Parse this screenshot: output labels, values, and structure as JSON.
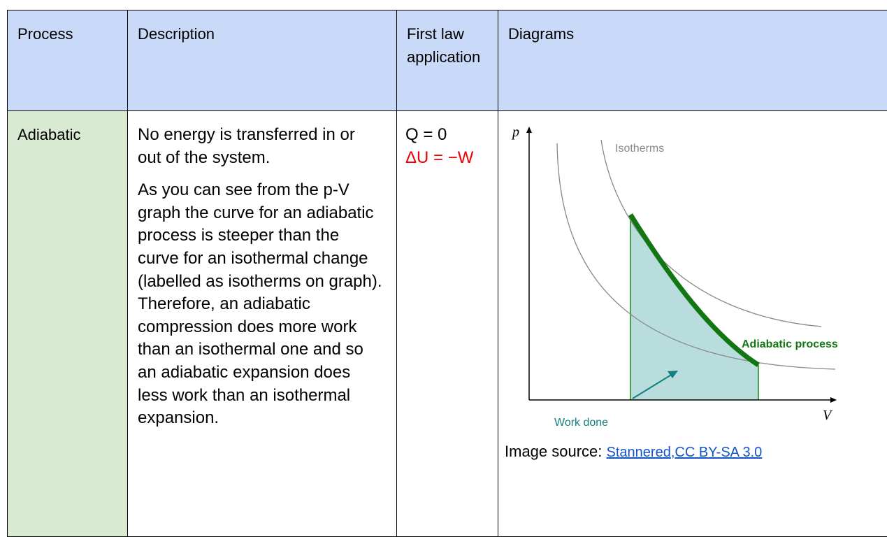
{
  "table": {
    "header": [
      "Process",
      "Description",
      "First law application",
      "Diagrams"
    ],
    "rows": [
      {
        "process": "Adiabatic",
        "description": [
          "No energy is transferred in or out of the system.",
          "As you can see from the p-V graph the curve for an adiabatic process is steeper than the curve for an isothermal change (labelled as isotherms on graph). Therefore, an adiabatic compression does more work than an isothermal one and so an adiabatic expansion does less work than an isothermal expansion."
        ],
        "first_law": [
          "Q = 0",
          "ΔU = −W"
        ],
        "diagram": {
          "y_axis": "p",
          "x_axis": "V",
          "isotherms": "Isotherms",
          "adiabatic": "Adiabatic process",
          "work": "Work done"
        },
        "caption": {
          "text": "Image source:",
          "links": [
            "Stannered",
            "CC BY-SA 3.0"
          ],
          "separator": ","
        }
      }
    ]
  }
}
